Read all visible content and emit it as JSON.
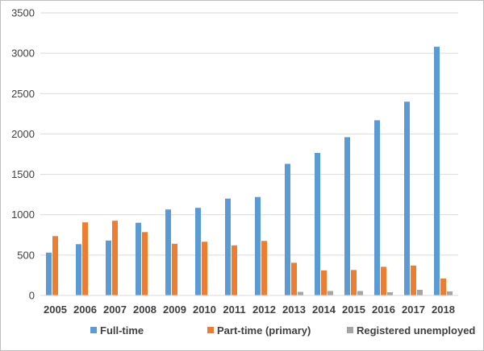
{
  "chart_data": {
    "type": "bar",
    "title": "",
    "xlabel": "",
    "ylabel": "",
    "categories": [
      "2005",
      "2006",
      "2007",
      "2008",
      "2009",
      "2010",
      "2011",
      "2012",
      "2013",
      "2014",
      "2015",
      "2016",
      "2017",
      "2018"
    ],
    "ylim": [
      0,
      3500
    ],
    "yticks": [
      "0",
      "500",
      "1000",
      "1500",
      "2000",
      "2500",
      "3000",
      "3500"
    ],
    "grid": true,
    "legend_position": "bottom",
    "series": [
      {
        "name": "Full-time",
        "color": "#5B9BD5",
        "values": [
          530,
          635,
          680,
          900,
          1065,
          1085,
          1200,
          1220,
          1630,
          1765,
          1960,
          2170,
          2400,
          3080
        ]
      },
      {
        "name": "Part-time (primary)",
        "color": "#ED7D31",
        "values": [
          735,
          905,
          925,
          785,
          640,
          665,
          620,
          675,
          405,
          310,
          315,
          355,
          370,
          210
        ]
      },
      {
        "name": "Registered unemployed",
        "color": "#A5A5A5",
        "values": [
          0,
          0,
          0,
          0,
          0,
          0,
          0,
          0,
          45,
          55,
          55,
          40,
          70,
          50
        ]
      }
    ]
  }
}
